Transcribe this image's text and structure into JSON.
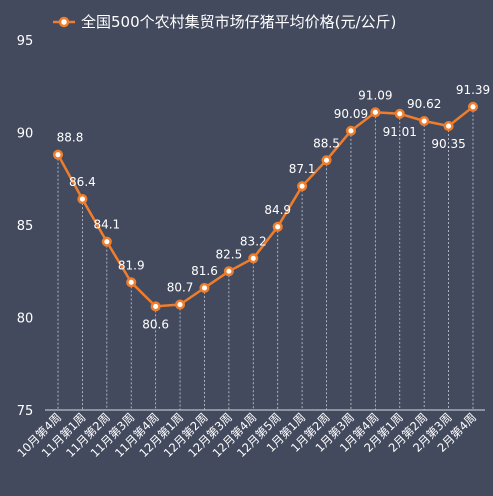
{
  "chart_data": {
    "type": "line",
    "legend": "全国500个农村集贸市场仔猪平均价格(元/公斤)",
    "series_color": "#ee7e2d",
    "categories": [
      "10月第4周",
      "11月第1周",
      "11月第2周",
      "11月第3周",
      "11月第4周",
      "12月第1周",
      "12月第2周",
      "12月第3周",
      "12月第4周",
      "12月第5周",
      "1月第1周",
      "1月第2周",
      "1月第3周",
      "1月第4周",
      "2月第1周",
      "2月第2周",
      "2月第3周",
      "2月第4周"
    ],
    "values": [
      88.8,
      86.4,
      84.1,
      81.9,
      80.6,
      80.7,
      81.6,
      82.5,
      83.2,
      84.9,
      87.1,
      88.5,
      90.09,
      91.09,
      91.01,
      90.62,
      90.35,
      91.39
    ],
    "data_labels": [
      "88.8",
      "86.4",
      "84.1",
      "81.9",
      "80.6",
      "80.7",
      "81.6",
      "82.5",
      "83.2",
      "84.9",
      "87.1",
      "88.5",
      "90.09",
      "91.09",
      "91.01",
      "90.62",
      "90.35",
      "91.39"
    ],
    "label_position": [
      "above",
      "above",
      "above",
      "above",
      "below",
      "above",
      "above",
      "above",
      "above",
      "above",
      "above",
      "above",
      "above",
      "above",
      "below",
      "above",
      "below",
      "above"
    ],
    "y_ticks": [
      75,
      80,
      85,
      90,
      95
    ],
    "ylim": [
      75,
      95
    ],
    "grid": "vertical-dashed",
    "legend_position": "top"
  }
}
